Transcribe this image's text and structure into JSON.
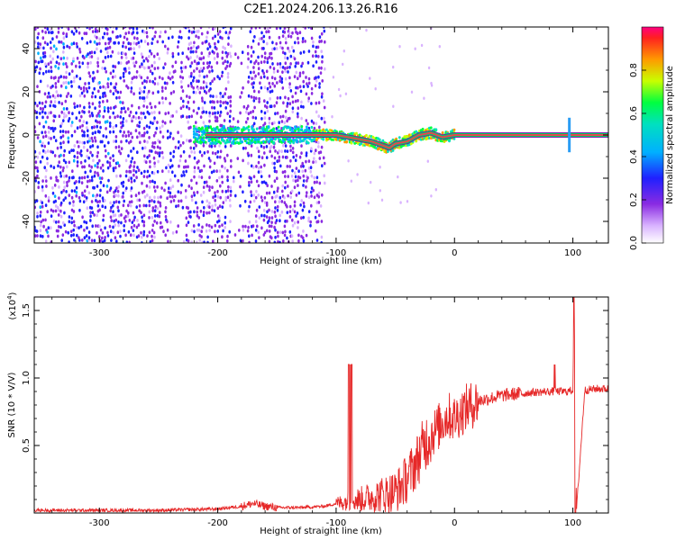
{
  "page_title": "C2E1.2024.206.13.26.R16",
  "colors": {
    "snr_line": "#e62828",
    "ridge": "#e8424f",
    "axis": "#000000"
  },
  "chart_data": [
    {
      "type": "heatmap",
      "title": "C2E1.2024.206.13.26.R16",
      "xlabel": "Height of straight line (km)",
      "ylabel": "Frequency (Hz)",
      "xlim": [
        -355,
        130
      ],
      "ylim": [
        -50,
        50
      ],
      "x_ticks": [
        "-300",
        "-200",
        "-100",
        "0",
        "100"
      ],
      "x_tick_values": [
        -300,
        -200,
        -100,
        0,
        100
      ],
      "y_ticks": [
        "40",
        "20",
        "0",
        "-20",
        "-40"
      ],
      "y_tick_values": [
        40,
        20,
        0,
        -20,
        -40
      ],
      "colorbar": {
        "label": "Normalized spectral amplitude",
        "range": [
          0,
          1
        ],
        "ticks": [
          "0.0",
          "0.2",
          "0.4",
          "0.6",
          "0.8"
        ],
        "tick_values": [
          0,
          0.2,
          0.4,
          0.6,
          0.8
        ],
        "colormap": "rainbow (white → magenta → blue → cyan → green → yellow → red)"
      },
      "ridge": {
        "description": "spectral peak frequency vs height",
        "x": [
          -210,
          -180,
          -150,
          -120,
          -100,
          -90,
          -80,
          -70,
          -60,
          -55,
          -50,
          -40,
          -30,
          -20,
          -10,
          0,
          50,
          100,
          130
        ],
        "y": [
          0,
          0,
          0,
          0,
          0,
          -1,
          -2,
          -3,
          -5,
          -6,
          -4,
          -3,
          0,
          1,
          -1,
          0,
          0,
          0,
          0
        ]
      }
    },
    {
      "type": "line",
      "xlabel": "Height of straight line (km)",
      "ylabel": "SNR (10 * V/V)",
      "y_scale_label": "(x10",
      "y_scale_exponent": "4",
      "xlim": [
        -355,
        130
      ],
      "ylim": [
        0,
        1.6
      ],
      "x_ticks": [
        "-300",
        "-200",
        "-100",
        "0",
        "100"
      ],
      "x_tick_values": [
        -300,
        -200,
        -100,
        0,
        100
      ],
      "y_ticks": [
        "0.5",
        "1.0",
        "1.5"
      ],
      "y_tick_values": [
        0.5,
        1.0,
        1.5
      ],
      "series": [
        {
          "x": [
            -355,
            -300,
            -250,
            -200,
            -180,
            -170,
            -160,
            -150,
            -130,
            -110,
            -100,
            -90,
            -80,
            -70,
            -60,
            -50,
            -45,
            -40,
            -35,
            -30,
            -25,
            -20,
            -15,
            -10,
            -5,
            0,
            5,
            10,
            15,
            20,
            30,
            40,
            50,
            60,
            80,
            90,
            95,
            100,
            101,
            102,
            103,
            110,
            120,
            130
          ],
          "y": [
            0.02,
            0.02,
            0.02,
            0.03,
            0.05,
            0.07,
            0.05,
            0.04,
            0.04,
            0.05,
            0.07,
            0.09,
            0.1,
            0.12,
            0.14,
            0.16,
            0.2,
            0.26,
            0.33,
            0.42,
            0.52,
            0.58,
            0.62,
            0.68,
            0.72,
            0.7,
            0.74,
            0.78,
            0.8,
            0.83,
            0.85,
            0.87,
            0.88,
            0.89,
            0.9,
            0.9,
            0.9,
            0.91,
            1.6,
            0.9,
            0.01,
            0.91,
            0.92,
            0.92
          ]
        }
      ],
      "peaks": [
        {
          "x": -88,
          "y": 1.1
        },
        {
          "x": 85,
          "y": 1.1
        },
        {
          "x": 101,
          "y": 1.6
        },
        {
          "x": 102,
          "y": 0.0
        }
      ]
    }
  ]
}
